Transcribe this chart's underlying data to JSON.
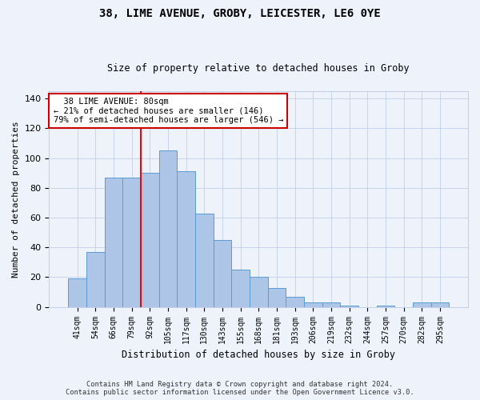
{
  "title1": "38, LIME AVENUE, GROBY, LEICESTER, LE6 0YE",
  "title2": "Size of property relative to detached houses in Groby",
  "xlabel": "Distribution of detached houses by size in Groby",
  "ylabel": "Number of detached properties",
  "categories": [
    "41sqm",
    "54sqm",
    "66sqm",
    "79sqm",
    "92sqm",
    "105sqm",
    "117sqm",
    "130sqm",
    "143sqm",
    "155sqm",
    "168sqm",
    "181sqm",
    "193sqm",
    "206sqm",
    "219sqm",
    "232sqm",
    "244sqm",
    "257sqm",
    "270sqm",
    "282sqm",
    "295sqm"
  ],
  "values": [
    19,
    37,
    87,
    87,
    90,
    105,
    91,
    63,
    45,
    25,
    20,
    13,
    7,
    3,
    3,
    1,
    0,
    1,
    0,
    3,
    3
  ],
  "bar_color": "#adc6e8",
  "bar_edge_color": "#5b9bd5",
  "bar_width": 1.0,
  "red_line_x": 3.5,
  "annotation_line1": "  38 LIME AVENUE: 80sqm",
  "annotation_line2": "← 21% of detached houses are smaller (146)",
  "annotation_line3": "79% of semi-detached houses are larger (546) →",
  "annotation_box_color": "#ffffff",
  "annotation_box_edge": "#cc0000",
  "ylim": [
    0,
    145
  ],
  "yticks": [
    0,
    20,
    40,
    60,
    80,
    100,
    120,
    140
  ],
  "footer": "Contains HM Land Registry data © Crown copyright and database right 2024.\nContains public sector information licensed under the Open Government Licence v3.0.",
  "bg_color": "#edf2fb",
  "plot_bg_color": "#edf2fb"
}
